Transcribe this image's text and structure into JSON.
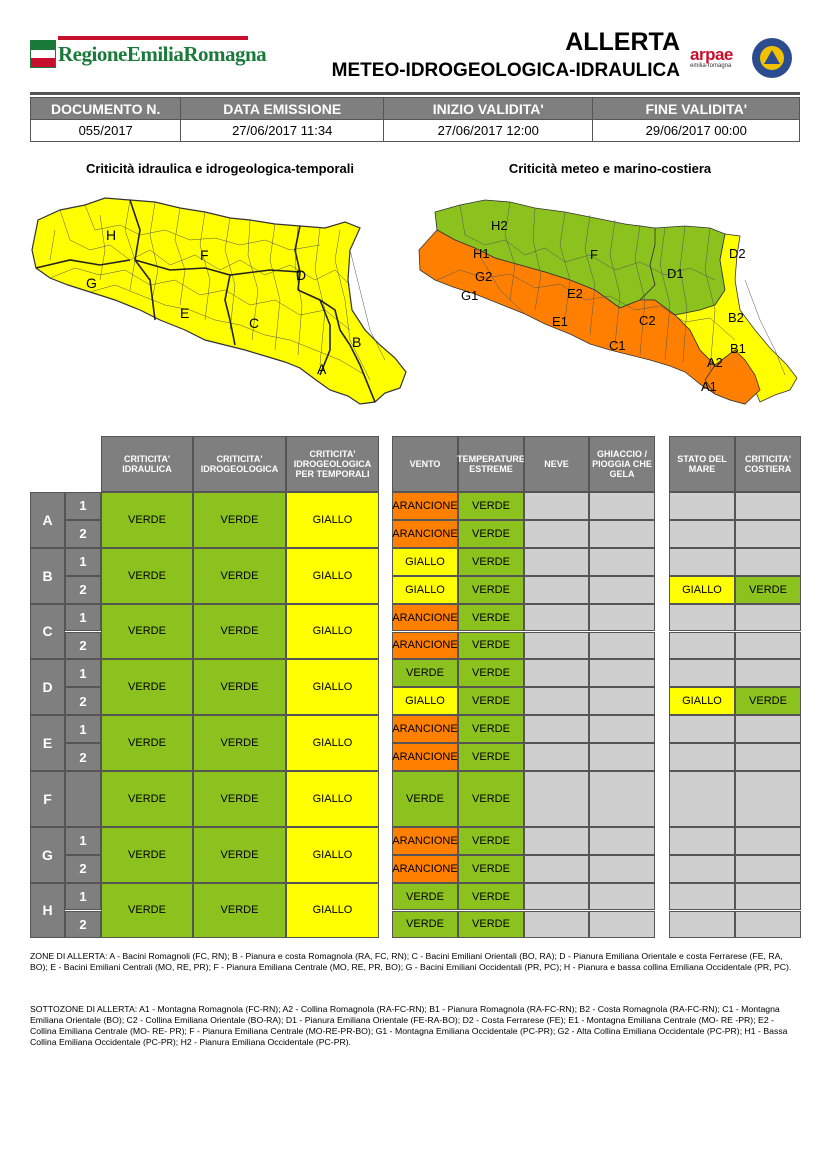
{
  "header": {
    "region_logo_text": "RegioneEmiliaRomagna",
    "title_line1": "ALLERTA",
    "title_line2": "METEO-IDROGEOLOGICA-IDRAULICA",
    "arpae_logo": "arpae",
    "arpae_sub": "emilia-romagna",
    "civil_protection_icon": "protezione-civile-icon"
  },
  "document": {
    "headers": [
      "DOCUMENTO N.",
      "DATA EMISSIONE",
      "INIZIO VALIDITA'",
      "FINE VALIDITA'"
    ],
    "values": [
      "055/2017",
      "27/06/2017 11:34",
      "27/06/2017 12:00",
      "29/06/2017 00:00"
    ]
  },
  "maps": {
    "left_title": "Criticità idraulica e idrogeologica-temporali",
    "right_title": "Criticità meteo e marino-costiera",
    "left_labels": [
      "H",
      "F",
      "G",
      "D",
      "E",
      "C",
      "B",
      "A"
    ],
    "right_labels": [
      "H2",
      "H1",
      "G2",
      "G1",
      "F",
      "D1",
      "D2",
      "E2",
      "E1",
      "C2",
      "C1",
      "B2",
      "B1",
      "A2",
      "A1"
    ]
  },
  "colors": {
    "verde": "#8cc21e",
    "giallo": "#ffff00",
    "arancione": "#ff8000",
    "header_grey": "#7f7f7f",
    "empty_grey": "#cfcfcf"
  },
  "table": {
    "col_headers": {
      "idraulica": "CRITICITA' IDRAULICA",
      "idrogeologica": "CRITICITA' IDROGEOLOGICA",
      "temporali": "CRITICITA' IDROGEOLOGICA PER TEMPORALI",
      "vento": "VENTO",
      "temperature": "TEMPERATURE ESTREME",
      "neve": "NEVE",
      "ghiaccio": "GHIACCIO / PIOGGIA CHE GELA",
      "mare": "STATO DEL MARE",
      "costiera": "CRITICITA' COSTIERA"
    },
    "zones": [
      {
        "zone": "A",
        "idraulica": "VERDE",
        "idrogeologica": "VERDE",
        "temporali": "GIALLO",
        "subs": [
          {
            "sub": "1",
            "vento": "ARANCIONE",
            "temperature": "VERDE",
            "mare": "",
            "costiera": ""
          },
          {
            "sub": "2",
            "vento": "ARANCIONE",
            "temperature": "VERDE",
            "mare": "",
            "costiera": ""
          }
        ]
      },
      {
        "zone": "B",
        "idraulica": "VERDE",
        "idrogeologica": "VERDE",
        "temporali": "GIALLO",
        "subs": [
          {
            "sub": "1",
            "vento": "GIALLO",
            "temperature": "VERDE",
            "mare": "",
            "costiera": ""
          },
          {
            "sub": "2",
            "vento": "GIALLO",
            "temperature": "VERDE",
            "mare": "GIALLO",
            "costiera": "VERDE"
          }
        ]
      },
      {
        "zone": "C",
        "idraulica": "VERDE",
        "idrogeologica": "VERDE",
        "temporali": "GIALLO",
        "subs": [
          {
            "sub": "1",
            "vento": "ARANCIONE",
            "temperature": "VERDE",
            "mare": "",
            "costiera": ""
          },
          {
            "sub": "2",
            "vento": "ARANCIONE",
            "temperature": "VERDE",
            "mare": "",
            "costiera": ""
          }
        ]
      },
      {
        "zone": "D",
        "idraulica": "VERDE",
        "idrogeologica": "VERDE",
        "temporali": "GIALLO",
        "subs": [
          {
            "sub": "1",
            "vento": "VERDE",
            "temperature": "VERDE",
            "mare": "",
            "costiera": ""
          },
          {
            "sub": "2",
            "vento": "GIALLO",
            "temperature": "VERDE",
            "mare": "GIALLO",
            "costiera": "VERDE"
          }
        ]
      },
      {
        "zone": "E",
        "idraulica": "VERDE",
        "idrogeologica": "VERDE",
        "temporali": "GIALLO",
        "subs": [
          {
            "sub": "1",
            "vento": "ARANCIONE",
            "temperature": "VERDE",
            "mare": "",
            "costiera": ""
          },
          {
            "sub": "2",
            "vento": "ARANCIONE",
            "temperature": "VERDE",
            "mare": "",
            "costiera": ""
          }
        ]
      },
      {
        "zone": "F",
        "idraulica": "VERDE",
        "idrogeologica": "VERDE",
        "temporali": "GIALLO",
        "subs": [
          {
            "sub": "",
            "vento": "VERDE",
            "temperature": "VERDE",
            "mare": "",
            "costiera": ""
          }
        ]
      },
      {
        "zone": "G",
        "idraulica": "VERDE",
        "idrogeologica": "VERDE",
        "temporali": "GIALLO",
        "subs": [
          {
            "sub": "1",
            "vento": "ARANCIONE",
            "temperature": "VERDE",
            "mare": "",
            "costiera": ""
          },
          {
            "sub": "2",
            "vento": "ARANCIONE",
            "temperature": "VERDE",
            "mare": "",
            "costiera": ""
          }
        ]
      },
      {
        "zone": "H",
        "idraulica": "VERDE",
        "idrogeologica": "VERDE",
        "temporali": "GIALLO",
        "subs": [
          {
            "sub": "1",
            "vento": "VERDE",
            "temperature": "VERDE",
            "mare": "",
            "costiera": ""
          },
          {
            "sub": "2",
            "vento": "VERDE",
            "temperature": "VERDE",
            "mare": "",
            "costiera": ""
          }
        ]
      }
    ]
  },
  "legend": {
    "zones_text": "ZONE DI ALLERTA: A - Bacini Romagnoli (FC, RN); B - Pianura e costa Romagnola (RA, FC, RN); C - Bacini Emiliani Orientali (BO, RA); D - Pianura Emiliana Orientale e costa Ferrarese (FE, RA, BO); E - Bacini Emiliani Centrali (MO, RE, PR); F - Pianura Emiliana Centrale (MO, RE, PR, BO); G - Bacini Emiliani Occidentali (PR, PC); H - Pianura e bassa collina Emiliana Occidentale (PR, PC).",
    "subzones_text": "SOTTOZONE DI ALLERTA: A1 - Montagna Romagnola (FC-RN); A2 - Collina Romagnola (RA-FC-RN); B1 - Pianura Romagnola (RA-FC-RN); B2 - Costa Romagnola  (RA-FC-RN); C1 - Montagna Emiliana Orientale (BO); C2 - Collina Emiliana Orientale (BO-RA); D1 - Pianura Emiliana Orientale (FE-RA-BO); D2 - Costa Ferrarese (FE); E1 - Montagna Emiliana Centrale (MO- RE -PR); E2 - Collina Emiliana Centrale (MO- RE- PR); F - Pianura Emiliana Centrale (MO-RE-PR-BO); G1 - Montagna Emiliana Occidentale (PC-PR); G2 - Alta Collina Emiliana Occidentale (PC-PR); H1 - Bassa Collina Emiliana Occidentale (PC-PR); H2 - Pianura Emiliana Occidentale (PC-PR)."
  }
}
